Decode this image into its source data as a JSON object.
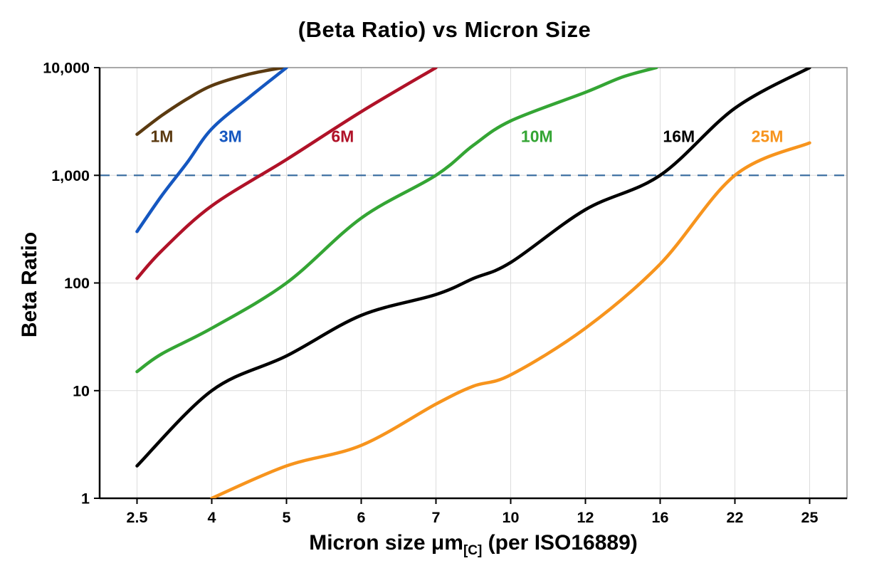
{
  "chart_data": {
    "type": "line",
    "title": "(Beta Ratio) vs Micron Size",
    "x_axis": {
      "label_main": "Micron size μm",
      "label_sub": "[C]",
      "label_suffix": " (per ISO16889)",
      "tick_values": [
        2.5,
        4,
        5,
        6,
        7,
        10,
        12,
        16,
        22,
        25
      ],
      "tick_labels": [
        "2.5",
        "4",
        "5",
        "6",
        "7",
        "10",
        "12",
        "16",
        "22",
        "25"
      ]
    },
    "y_axis": {
      "label": "Beta Ratio",
      "scale": "log",
      "range": [
        1,
        10000
      ],
      "ticks": [
        {
          "value": 1,
          "label": "1"
        },
        {
          "value": 10,
          "label": "10"
        },
        {
          "value": 100,
          "label": "100"
        },
        {
          "value": 1000,
          "label": "1,000"
        },
        {
          "value": 10000,
          "label": "10,000"
        }
      ]
    },
    "grid": {
      "show": true,
      "color": "#dcdcdc"
    },
    "reference_line": {
      "value": 1000,
      "color": "#34699d",
      "style": "dashed"
    },
    "series": [
      {
        "name": "1M",
        "color": "#5b3a10",
        "label_position": {
          "x": 3.0,
          "y": 2300
        },
        "points": [
          [
            2.5,
            2400
          ],
          [
            3,
            3600
          ],
          [
            3.5,
            5100
          ],
          [
            4,
            6800
          ],
          [
            4.5,
            8700
          ],
          [
            4.95,
            10000
          ]
        ]
      },
      {
        "name": "3M",
        "color": "#1557c0",
        "label_position": {
          "x": 4.25,
          "y": 2300
        },
        "points": [
          [
            2.5,
            300
          ],
          [
            3,
            650
          ],
          [
            3.5,
            1300
          ],
          [
            4,
            2700
          ],
          [
            4.5,
            5300
          ],
          [
            5,
            10000
          ]
        ]
      },
      {
        "name": "6M",
        "color": "#b01228",
        "label_position": {
          "x": 5.75,
          "y": 2300
        },
        "points": [
          [
            2.5,
            110
          ],
          [
            3,
            200
          ],
          [
            4,
            520
          ],
          [
            5,
            1400
          ],
          [
            6,
            3900
          ],
          [
            7,
            10000
          ]
        ]
      },
      {
        "name": "10M",
        "color": "#34a534",
        "label_position": {
          "x": 10.7,
          "y": 2300
        },
        "points": [
          [
            2.5,
            15
          ],
          [
            3,
            22
          ],
          [
            4,
            38
          ],
          [
            5,
            100
          ],
          [
            6,
            400
          ],
          [
            7,
            1000
          ],
          [
            8.5,
            1900
          ],
          [
            10,
            3200
          ],
          [
            12,
            5900
          ],
          [
            14,
            8200
          ],
          [
            15.8,
            10000
          ]
        ]
      },
      {
        "name": "16M",
        "color": "#000000",
        "label_position": {
          "x": 17.5,
          "y": 2300
        },
        "points": [
          [
            2.5,
            2
          ],
          [
            4,
            10
          ],
          [
            5,
            21
          ],
          [
            6,
            50
          ],
          [
            7,
            78
          ],
          [
            8.5,
            110
          ],
          [
            10,
            155
          ],
          [
            12,
            480
          ],
          [
            16,
            1000
          ],
          [
            22,
            4200
          ],
          [
            25,
            10000
          ]
        ]
      },
      {
        "name": "25M",
        "color": "#f7941d",
        "label_position": {
          "x": 23.3,
          "y": 2300
        },
        "points": [
          [
            4,
            1
          ],
          [
            5,
            2
          ],
          [
            6,
            3.1
          ],
          [
            7,
            7.5
          ],
          [
            8.5,
            11
          ],
          [
            10,
            14
          ],
          [
            12,
            38
          ],
          [
            16,
            150
          ],
          [
            22,
            1000
          ],
          [
            25,
            2000
          ]
        ]
      }
    ]
  }
}
